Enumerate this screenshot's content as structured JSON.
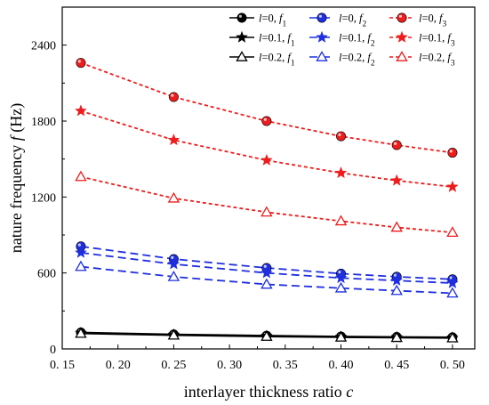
{
  "chart_data": {
    "type": "line",
    "xlabel_main": "interlayer thickness ratio",
    "xlabel_var": "c",
    "ylabel_main": "nature frequency",
    "ylabel_var": "f",
    "ylabel_unit": "(Hz)",
    "xlim": [
      0.15,
      0.52
    ],
    "ylim": [
      0,
      2700
    ],
    "xticks": [
      0.15,
      0.2,
      0.25,
      0.3,
      0.35,
      0.4,
      0.45,
      0.5
    ],
    "xtick_labels": [
      "0. 15",
      "0. 20",
      "0. 25",
      "0. 30",
      "0. 35",
      "0. 40",
      "0. 45",
      "0. 50"
    ],
    "yticks": [
      0,
      600,
      1200,
      1800,
      2400
    ],
    "ytick_labels": [
      "0",
      "600",
      "1200",
      "1800",
      "2400"
    ],
    "x": [
      0.1667,
      0.25,
      0.3333,
      0.4,
      0.45,
      0.5
    ],
    "grid": false,
    "legend_position": "top-right",
    "series": [
      {
        "name": "l=0, f1",
        "label_l": "0",
        "label_f": "1",
        "color": "#000000",
        "marker": "circle",
        "dash": "solid",
        "values": [
          130,
          115,
          105,
          98,
          95,
          92
        ]
      },
      {
        "name": "l=0.1, f1",
        "label_l": "0.1",
        "label_f": "1",
        "color": "#000000",
        "marker": "star",
        "dash": "solid",
        "values": [
          126,
          112,
          102,
          95,
          92,
          89
        ]
      },
      {
        "name": "l=0.2, f1",
        "label_l": "0.2",
        "label_f": "1",
        "color": "#000000",
        "marker": "triangle",
        "dash": "solid",
        "values": [
          122,
          108,
          98,
          92,
          89,
          86
        ]
      },
      {
        "name": "l=0, f2",
        "label_l": "0",
        "label_f": "2",
        "color": "#1f2fe0",
        "marker": "circle",
        "dash": "dashed",
        "values": [
          810,
          710,
          640,
          595,
          570,
          550
        ]
      },
      {
        "name": "l=0.1, f2",
        "label_l": "0.1",
        "label_f": "2",
        "color": "#1f2fe0",
        "marker": "star",
        "dash": "dashed",
        "values": [
          760,
          670,
          600,
          560,
          540,
          520
        ]
      },
      {
        "name": "l=0.2, f2",
        "label_l": "0.2",
        "label_f": "2",
        "color": "#1f2fe0",
        "marker": "triangle",
        "dash": "dashed",
        "values": [
          650,
          570,
          510,
          480,
          460,
          440
        ]
      },
      {
        "name": "l=0, f3",
        "label_l": "0",
        "label_f": "3",
        "color": "#ee1c1c",
        "marker": "circle",
        "dash": "dotted",
        "values": [
          2260,
          1990,
          1800,
          1680,
          1610,
          1550
        ]
      },
      {
        "name": "l=0.1, f3",
        "label_l": "0.1",
        "label_f": "3",
        "color": "#ee1c1c",
        "marker": "star",
        "dash": "dotted",
        "values": [
          1880,
          1650,
          1490,
          1390,
          1330,
          1280
        ]
      },
      {
        "name": "l=0.2, f3",
        "label_l": "0.2",
        "label_f": "3",
        "color": "#ee1c1c",
        "marker": "triangle",
        "dash": "dotted",
        "values": [
          1360,
          1190,
          1080,
          1010,
          960,
          920
        ]
      }
    ]
  }
}
